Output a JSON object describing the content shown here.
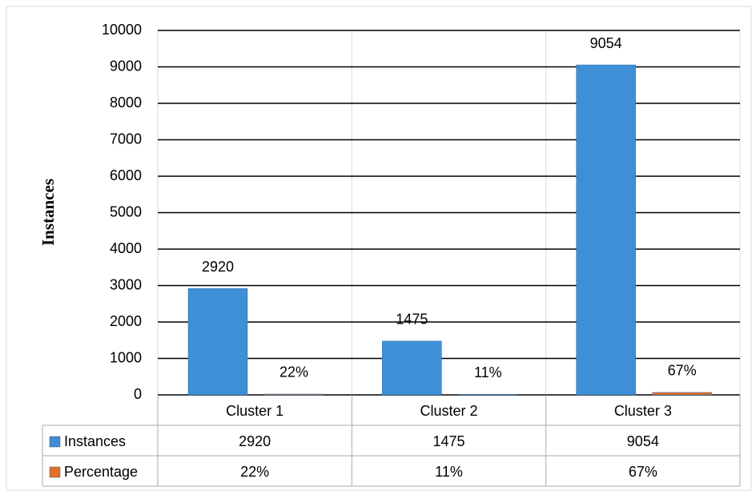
{
  "chart_data": {
    "type": "bar",
    "y_label": "Instances",
    "categories": [
      "Cluster 1",
      "Cluster 2",
      "Cluster 3"
    ],
    "series": [
      {
        "name": "Instances",
        "color": "#3f8fd6",
        "values": [
          2920,
          1475,
          9054
        ]
      },
      {
        "name": "Percentage",
        "color": "#e0702a",
        "values": [
          22,
          11,
          67
        ],
        "value_labels": [
          "22%",
          "11%",
          "67%"
        ]
      }
    ],
    "ylim": [
      0,
      10000
    ],
    "yticks": [
      0,
      1000,
      2000,
      3000,
      4000,
      5000,
      6000,
      7000,
      8000,
      9000,
      10000
    ],
    "grid": true
  }
}
